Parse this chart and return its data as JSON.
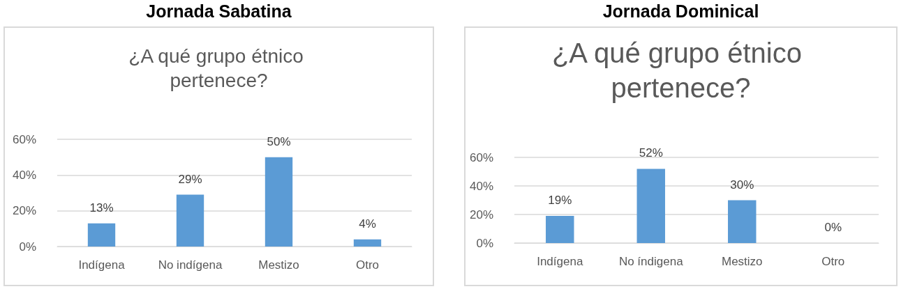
{
  "chart_data": [
    {
      "type": "bar",
      "title": "Jornada Sabatina",
      "subtitle": "¿A qué grupo étnico pertenece?",
      "categories": [
        "Indígena",
        "No indígena",
        "Mestizo",
        "Otro"
      ],
      "values": [
        13,
        29,
        50,
        4
      ],
      "value_labels": [
        "13%",
        "29%",
        "50%",
        "4%"
      ],
      "color": "#5b9bd5",
      "ylim": [
        0,
        60
      ],
      "yticks": [
        {
          "value": 0,
          "label": "0%"
        },
        {
          "value": 20,
          "label": "20%"
        },
        {
          "value": 40,
          "label": "40%"
        },
        {
          "value": 60,
          "label": "60%"
        }
      ],
      "grid": "y"
    },
    {
      "type": "bar",
      "title": "Jornada Dominical",
      "subtitle": "¿A qué grupo étnico pertenece?",
      "categories": [
        "Indígena",
        "No índigena",
        "Mestizo",
        "Otro"
      ],
      "values": [
        19,
        52,
        30,
        0
      ],
      "value_labels": [
        "19%",
        "52%",
        "30%",
        "0%"
      ],
      "color": "#5b9bd5",
      "ylim": [
        0,
        60
      ],
      "yticks": [
        {
          "value": 0,
          "label": "0%"
        },
        {
          "value": 20,
          "label": "20%"
        },
        {
          "value": 40,
          "label": "40%"
        },
        {
          "value": 60,
          "label": "60%"
        }
      ],
      "grid": "y"
    }
  ]
}
